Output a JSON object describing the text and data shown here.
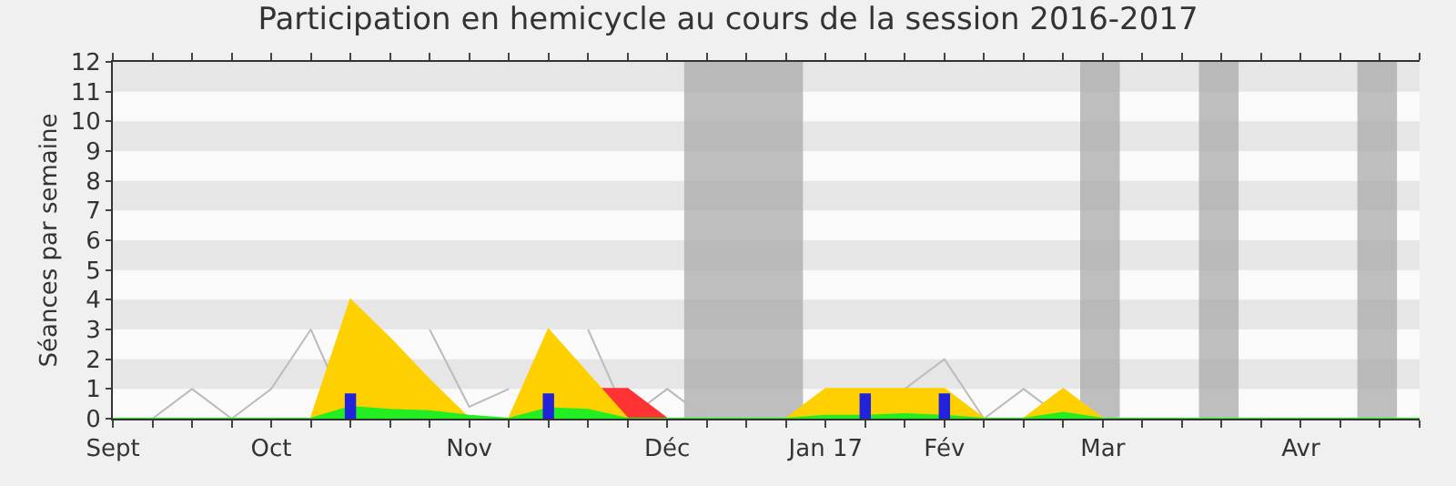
{
  "chart_data": {
    "type": "area",
    "title": "Participation en hemicycle au cours de la session 2016-2017",
    "ylabel": "Séances par semaine",
    "x": [
      "2016-09-09",
      "2016-09-16",
      "2016-09-23",
      "2016-09-30",
      "2016-10-07",
      "2016-10-14",
      "2016-10-21",
      "2016-10-28",
      "2016-11-04",
      "2016-11-11",
      "2016-11-18",
      "2016-11-25",
      "2016-12-02",
      "2016-12-09",
      "2016-12-16",
      "2016-12-23",
      "2016-12-30",
      "2017-01-06",
      "2017-01-13",
      "2017-01-20",
      "2017-01-27",
      "2017-02-03",
      "2017-02-10",
      "2017-02-17",
      "2017-02-24",
      "2017-03-03",
      "2017-03-10",
      "2017-03-17",
      "2017-03-24",
      "2017-03-31",
      "2017-04-07",
      "2017-04-14",
      "2017-04-21",
      "2017-04-28"
    ],
    "series": [
      {
        "type": "line",
        "color": "#bbbbbb",
        "values": [
          null,
          0,
          1,
          0,
          1,
          3,
          0,
          null,
          3,
          0.4,
          1,
          null,
          3,
          0,
          1,
          0,
          0,
          0,
          null,
          null,
          1,
          2,
          0,
          1,
          0,
          null,
          null,
          null,
          null,
          null,
          null,
          null,
          null,
          null
        ]
      },
      {
        "color": "#ff3333",
        "values": [
          0,
          0,
          0,
          0,
          0,
          0,
          0,
          0,
          0,
          0,
          0,
          0,
          1,
          1,
          0,
          0,
          0,
          0,
          0,
          0,
          0,
          0,
          0,
          0,
          0,
          0,
          0,
          0,
          0,
          0,
          0,
          0,
          0,
          0
        ]
      },
      {
        "color": "#ffd000",
        "values": [
          0,
          0,
          0,
          0,
          0,
          0,
          4,
          2.7,
          1.3,
          0,
          0,
          3,
          1.5,
          0,
          0,
          0,
          0,
          0,
          1,
          1,
          1,
          1,
          0,
          0,
          1,
          0,
          0,
          0,
          0,
          0,
          0,
          0,
          0,
          0
        ]
      },
      {
        "color": "#22ee22",
        "values": [
          0,
          0,
          0,
          0,
          0,
          0,
          0.4,
          0.3,
          0.25,
          0.1,
          0,
          0.35,
          0.3,
          0,
          0,
          0,
          0,
          0,
          0.1,
          0.1,
          0.15,
          0.1,
          0,
          0,
          0.2,
          0,
          0,
          0,
          0,
          0,
          0,
          0,
          0,
          0
        ]
      },
      {
        "type": "bar",
        "color": "#2222dd",
        "x": [
          "2016-10-21",
          "2016-11-25",
          "2017-01-20",
          "2017-02-03"
        ],
        "values": [
          0.85,
          0.85,
          0.85,
          0.85
        ]
      }
    ],
    "xlim": [
      "2016-09-09",
      "2017-04-28"
    ],
    "xticks": [
      {
        "value": "2016-09-09",
        "label": "Sept"
      },
      {
        "value": "2016-09-16",
        "label": null
      },
      {
        "value": "2016-09-23",
        "label": null
      },
      {
        "value": "2016-09-30",
        "label": null
      },
      {
        "value": "2016-10-07",
        "label": "Oct"
      },
      {
        "value": "2016-10-14",
        "label": null
      },
      {
        "value": "2016-10-21",
        "label": null
      },
      {
        "value": "2016-10-28",
        "label": null
      },
      {
        "value": "2016-11-04",
        "label": null
      },
      {
        "value": "2016-11-11",
        "label": "Nov"
      },
      {
        "value": "2016-11-18",
        "label": null
      },
      {
        "value": "2016-11-25",
        "label": null
      },
      {
        "value": "2016-12-02",
        "label": null
      },
      {
        "value": "2016-12-09",
        "label": null
      },
      {
        "value": "2016-12-16",
        "label": "Déc"
      },
      {
        "value": "2016-12-23",
        "label": null
      },
      {
        "value": "2016-12-30",
        "label": null
      },
      {
        "value": "2017-01-06",
        "label": null
      },
      {
        "value": "2017-01-13",
        "label": "Jan 17"
      },
      {
        "value": "2017-01-20",
        "label": null
      },
      {
        "value": "2017-01-27",
        "label": null
      },
      {
        "value": "2017-02-03",
        "label": "Fév"
      },
      {
        "value": "2017-02-10",
        "label": null
      },
      {
        "value": "2017-02-17",
        "label": null
      },
      {
        "value": "2017-02-24",
        "label": null
      },
      {
        "value": "2017-03-03",
        "label": "Mar"
      },
      {
        "value": "2017-03-10",
        "label": null
      },
      {
        "value": "2017-03-17",
        "label": null
      },
      {
        "value": "2017-03-24",
        "label": null
      },
      {
        "value": "2017-03-31",
        "label": null
      },
      {
        "value": "2017-04-07",
        "label": "Avr"
      },
      {
        "value": "2017-04-14",
        "label": null
      },
      {
        "value": "2017-04-21",
        "label": null
      },
      {
        "value": "2017-04-28",
        "label": null
      }
    ],
    "ylim": [
      0,
      12
    ],
    "yticks": [
      0,
      1,
      2,
      3,
      4,
      5,
      6,
      7,
      8,
      9,
      10,
      11,
      12
    ],
    "bands": [
      {
        "axis": "y",
        "from": 1,
        "to": 2,
        "color": "#e6e6e6"
      },
      {
        "axis": "y",
        "from": 3,
        "to": 4,
        "color": "#e6e6e6"
      },
      {
        "axis": "y",
        "from": 5,
        "to": 6,
        "color": "#e6e6e6"
      },
      {
        "axis": "y",
        "from": 7,
        "to": 8,
        "color": "#e6e6e6"
      },
      {
        "axis": "y",
        "from": 9,
        "to": 10,
        "color": "#e6e6e6"
      },
      {
        "axis": "y",
        "from": 11,
        "to": 12,
        "color": "#e6e6e6"
      },
      {
        "axis": "x",
        "from": "2016-12-19",
        "to": "2017-01-09",
        "color": "#aaaaaa"
      },
      {
        "axis": "x",
        "from": "2017-02-27",
        "to": "2017-03-06",
        "color": "#aaaaaa"
      },
      {
        "axis": "x",
        "from": "2017-03-20",
        "to": "2017-03-27",
        "color": "#aaaaaa"
      },
      {
        "axis": "x",
        "from": "2017-04-17",
        "to": "2017-04-24",
        "color": "#aaaaaa"
      }
    ]
  }
}
